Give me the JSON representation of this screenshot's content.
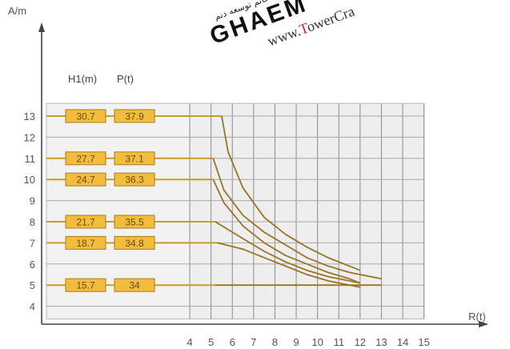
{
  "watermark": {
    "brand": "GHAEM",
    "url_prefix": "www.",
    "url_highlight": "T",
    "url_suffix": "owerCra",
    "persian_text": "مهندسی قائم توسعه دنم"
  },
  "chart_data": {
    "type": "line",
    "ylabel": "A/m",
    "xlabel": "R(t)",
    "column_headers": [
      "H1(m)",
      "P(t)"
    ],
    "x_ticks": [
      4,
      5,
      6,
      7,
      8,
      9,
      10,
      11,
      12,
      13,
      14,
      15
    ],
    "y_ticks": [
      13,
      12,
      11,
      10,
      9,
      8,
      7,
      6,
      5,
      4
    ],
    "xlim": [
      4,
      15
    ],
    "ylim": [
      3.4,
      13.6
    ],
    "grid": true,
    "rows": [
      {
        "A": 13,
        "H1": "30.7",
        "P": "37.9"
      },
      {
        "A": 11,
        "H1": "27.7",
        "P": "37.1"
      },
      {
        "A": 10,
        "H1": "24.7",
        "P": "36.3"
      },
      {
        "A": 8,
        "H1": "21.7",
        "P": "35.5"
      },
      {
        "A": 7,
        "H1": "18.7",
        "P": "34.8"
      },
      {
        "A": 5,
        "H1": "15.7",
        "P": "34"
      }
    ],
    "series": [
      {
        "points": [
          [
            5.5,
            13
          ],
          [
            5.8,
            11.3
          ],
          [
            6.5,
            9.6
          ],
          [
            7.5,
            8.2
          ],
          [
            8.5,
            7.4
          ],
          [
            9.5,
            6.8
          ],
          [
            10.5,
            6.3
          ],
          [
            11.5,
            5.9
          ],
          [
            12,
            5.7
          ]
        ]
      },
      {
        "points": [
          [
            5.1,
            11
          ],
          [
            5.6,
            9.5
          ],
          [
            6.5,
            8.3
          ],
          [
            7.5,
            7.5
          ],
          [
            8.5,
            6.9
          ],
          [
            9.5,
            6.3
          ],
          [
            10.5,
            5.9
          ],
          [
            11.5,
            5.6
          ],
          [
            13,
            5.3
          ]
        ]
      },
      {
        "points": [
          [
            5.1,
            10
          ],
          [
            5.6,
            8.9
          ],
          [
            6.5,
            7.8
          ],
          [
            7.5,
            7.0
          ],
          [
            8.5,
            6.4
          ],
          [
            9.5,
            6.0
          ],
          [
            10.5,
            5.6
          ],
          [
            11.5,
            5.3
          ],
          [
            12,
            5.1
          ]
        ]
      },
      {
        "points": [
          [
            5.2,
            8
          ],
          [
            6.5,
            7.2
          ],
          [
            7.5,
            6.6
          ],
          [
            8.5,
            6.1
          ],
          [
            9.5,
            5.7
          ],
          [
            10.5,
            5.4
          ],
          [
            11.5,
            5.2
          ],
          [
            12,
            5.1
          ]
        ]
      },
      {
        "points": [
          [
            5.3,
            7
          ],
          [
            6.5,
            6.7
          ],
          [
            7.5,
            6.3
          ],
          [
            8.5,
            5.9
          ],
          [
            9.5,
            5.5
          ],
          [
            10.5,
            5.2
          ],
          [
            11.5,
            5.0
          ],
          [
            12,
            4.9
          ]
        ]
      },
      {
        "points": [
          [
            5.2,
            5
          ],
          [
            10,
            5
          ],
          [
            13,
            5
          ]
        ]
      }
    ]
  }
}
